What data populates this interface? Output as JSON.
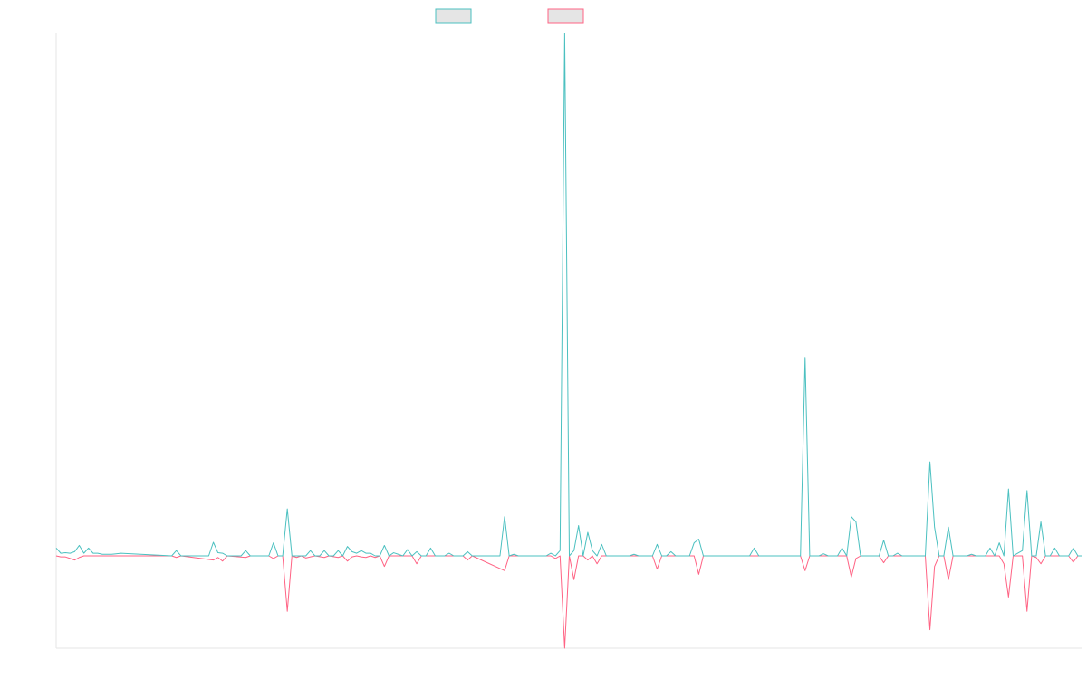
{
  "chart_data": {
    "type": "line",
    "title": "",
    "xlabel": "",
    "ylabel": "",
    "grid": false,
    "legend_position": "top-center",
    "series": [
      {
        "name": "",
        "color": "#4bc0c0",
        "sign": 1,
        "points": [
          [
            0,
            1.5
          ],
          [
            1,
            0.5
          ],
          [
            2,
            0.6
          ],
          [
            3,
            0.5
          ],
          [
            4,
            0.8
          ],
          [
            5,
            2.0
          ],
          [
            6,
            0.5
          ],
          [
            7,
            1.5
          ],
          [
            8,
            0.5
          ],
          [
            9,
            0.5
          ],
          [
            10,
            0.3
          ],
          [
            12,
            0.3
          ],
          [
            14,
            0.5
          ],
          [
            25,
            0
          ],
          [
            26,
            1.0
          ],
          [
            27,
            0
          ],
          [
            28,
            0
          ],
          [
            33,
            0
          ],
          [
            34,
            2.6
          ],
          [
            35,
            0.6
          ],
          [
            36,
            0.5
          ],
          [
            37,
            0
          ],
          [
            40,
            0
          ],
          [
            41,
            1.0
          ],
          [
            42,
            0
          ],
          [
            46,
            0
          ],
          [
            47,
            2.5
          ],
          [
            48,
            0
          ],
          [
            49,
            0
          ],
          [
            50,
            9.0
          ],
          [
            51,
            0
          ],
          [
            52,
            0
          ],
          [
            53,
            0
          ],
          [
            54,
            0
          ],
          [
            55,
            1.0
          ],
          [
            56,
            0
          ],
          [
            57,
            0
          ],
          [
            58,
            1.0
          ],
          [
            59,
            0
          ],
          [
            60,
            0
          ],
          [
            61,
            1.0
          ],
          [
            62,
            0
          ],
          [
            63,
            1.8
          ],
          [
            64,
            0.8
          ],
          [
            65,
            0.5
          ],
          [
            66,
            1.0
          ],
          [
            67,
            0.5
          ],
          [
            68,
            0.5
          ],
          [
            69,
            0
          ],
          [
            70,
            0
          ],
          [
            71,
            2.0
          ],
          [
            72,
            0
          ],
          [
            73,
            0.6
          ],
          [
            74,
            0.3
          ],
          [
            75,
            0
          ],
          [
            76,
            1.2
          ],
          [
            77,
            0
          ],
          [
            78,
            0.8
          ],
          [
            79,
            0
          ],
          [
            80,
            0
          ],
          [
            81,
            1.5
          ],
          [
            82,
            0
          ],
          [
            83,
            0
          ],
          [
            84,
            0
          ],
          [
            85,
            0.5
          ],
          [
            86,
            0
          ],
          [
            87,
            0
          ],
          [
            88,
            0
          ],
          [
            89,
            0.8
          ],
          [
            90,
            0
          ],
          [
            96,
            0
          ],
          [
            97,
            7.5
          ],
          [
            98,
            0
          ],
          [
            99,
            0.3
          ],
          [
            100,
            0
          ],
          [
            106,
            0
          ],
          [
            107,
            0.5
          ],
          [
            108,
            0
          ],
          [
            109,
            1.0
          ],
          [
            110,
            100
          ],
          [
            111,
            0
          ],
          [
            112,
            1.0
          ],
          [
            113,
            5.8
          ],
          [
            114,
            0
          ],
          [
            115,
            4.5
          ],
          [
            116,
            1.0
          ],
          [
            117,
            0
          ],
          [
            118,
            2.2
          ],
          [
            119,
            0
          ],
          [
            120,
            0
          ],
          [
            124,
            0
          ],
          [
            125,
            0.3
          ],
          [
            126,
            0
          ],
          [
            129,
            0
          ],
          [
            130,
            2.2
          ],
          [
            131,
            0
          ],
          [
            132,
            0
          ],
          [
            133,
            0.8
          ],
          [
            134,
            0
          ],
          [
            137,
            0
          ],
          [
            138,
            2.5
          ],
          [
            139,
            3.2
          ],
          [
            140,
            0
          ],
          [
            150,
            0
          ],
          [
            151,
            1.5
          ],
          [
            152,
            0
          ],
          [
            161,
            0
          ],
          [
            162,
            38.0
          ],
          [
            163,
            0
          ],
          [
            164,
            0
          ],
          [
            165,
            0
          ],
          [
            166,
            0.4
          ],
          [
            167,
            0
          ],
          [
            169,
            0
          ],
          [
            170,
            1.5
          ],
          [
            171,
            0
          ],
          [
            172,
            7.5
          ],
          [
            173,
            6.5
          ],
          [
            174,
            0
          ],
          [
            178,
            0
          ],
          [
            179,
            3.0
          ],
          [
            180,
            0
          ],
          [
            181,
            0
          ],
          [
            182,
            0.5
          ],
          [
            183,
            0
          ],
          [
            188,
            0
          ],
          [
            189,
            18.0
          ],
          [
            190,
            5.5
          ],
          [
            191,
            0
          ],
          [
            192,
            0
          ],
          [
            193,
            5.5
          ],
          [
            194,
            0
          ],
          [
            197,
            0
          ],
          [
            198,
            0.3
          ],
          [
            199,
            0
          ],
          [
            201,
            0
          ],
          [
            202,
            1.5
          ],
          [
            203,
            0
          ],
          [
            204,
            2.5
          ],
          [
            205,
            0
          ],
          [
            206,
            12.8
          ],
          [
            207,
            0
          ],
          [
            208,
            0.5
          ],
          [
            209,
            1.0
          ],
          [
            210,
            12.5
          ],
          [
            211,
            0
          ],
          [
            212,
            0
          ],
          [
            213,
            6.5
          ],
          [
            214,
            0
          ],
          [
            215,
            0
          ],
          [
            216,
            1.5
          ],
          [
            217,
            0
          ],
          [
            218,
            0
          ],
          [
            219,
            0
          ],
          [
            220,
            1.5
          ],
          [
            221,
            0
          ],
          [
            222,
            0
          ]
        ]
      },
      {
        "name": "",
        "color": "#ff6384",
        "sign": -1,
        "points": [
          [
            0,
            0
          ],
          [
            1,
            0.2
          ],
          [
            2,
            0.2
          ],
          [
            3,
            0.5
          ],
          [
            4,
            0.8
          ],
          [
            5,
            0.3
          ],
          [
            6,
            0
          ],
          [
            25,
            0
          ],
          [
            26,
            0.3
          ],
          [
            27,
            0
          ],
          [
            34,
            0.8
          ],
          [
            35,
            0.3
          ],
          [
            36,
            1.0
          ],
          [
            37,
            0
          ],
          [
            41,
            0.3
          ],
          [
            42,
            0
          ],
          [
            46,
            0
          ],
          [
            47,
            0.5
          ],
          [
            48,
            0
          ],
          [
            49,
            0
          ],
          [
            50,
            10.5
          ],
          [
            51,
            0
          ],
          [
            52,
            0.3
          ],
          [
            53,
            0
          ],
          [
            54,
            0.4
          ],
          [
            55,
            0.2
          ],
          [
            56,
            0
          ],
          [
            58,
            0.3
          ],
          [
            59,
            0
          ],
          [
            61,
            0.3
          ],
          [
            62,
            0
          ],
          [
            63,
            1.0
          ],
          [
            64,
            0.2
          ],
          [
            65,
            0
          ],
          [
            66,
            0.2
          ],
          [
            67,
            0.3
          ],
          [
            68,
            0
          ],
          [
            69,
            0.3
          ],
          [
            70,
            0
          ],
          [
            71,
            2.0
          ],
          [
            72,
            0
          ],
          [
            73,
            0
          ],
          [
            77,
            0
          ],
          [
            78,
            1.5
          ],
          [
            79,
            0
          ],
          [
            88,
            0
          ],
          [
            89,
            0.8
          ],
          [
            90,
            0
          ],
          [
            97,
            2.8
          ],
          [
            98,
            0
          ],
          [
            107,
            0
          ],
          [
            108,
            0.5
          ],
          [
            109,
            0
          ],
          [
            110,
            17.5
          ],
          [
            111,
            0
          ],
          [
            112,
            4.5
          ],
          [
            113,
            0
          ],
          [
            114,
            0
          ],
          [
            115,
            0.8
          ],
          [
            116,
            0
          ],
          [
            117,
            1.5
          ],
          [
            118,
            0
          ],
          [
            129,
            0
          ],
          [
            130,
            2.5
          ],
          [
            131,
            0
          ],
          [
            138,
            0
          ],
          [
            139,
            3.5
          ],
          [
            140,
            0
          ],
          [
            161,
            0
          ],
          [
            162,
            2.8
          ],
          [
            163,
            0
          ],
          [
            171,
            0
          ],
          [
            172,
            4.0
          ],
          [
            173,
            0.5
          ],
          [
            174,
            0
          ],
          [
            178,
            0
          ],
          [
            179,
            1.3
          ],
          [
            180,
            0
          ],
          [
            188,
            0
          ],
          [
            189,
            14.0
          ],
          [
            190,
            2.0
          ],
          [
            191,
            0
          ],
          [
            192,
            0
          ],
          [
            193,
            4.5
          ],
          [
            194,
            0
          ],
          [
            204,
            0
          ],
          [
            205,
            1.5
          ],
          [
            206,
            7.8
          ],
          [
            207,
            0
          ],
          [
            208,
            0
          ],
          [
            209,
            0
          ],
          [
            210,
            10.5
          ],
          [
            211,
            0
          ],
          [
            212,
            0.3
          ],
          [
            213,
            1.5
          ],
          [
            214,
            0
          ],
          [
            215,
            0
          ],
          [
            219,
            0
          ],
          [
            220,
            1.2
          ],
          [
            221,
            0
          ],
          [
            222,
            0
          ]
        ]
      }
    ]
  }
}
